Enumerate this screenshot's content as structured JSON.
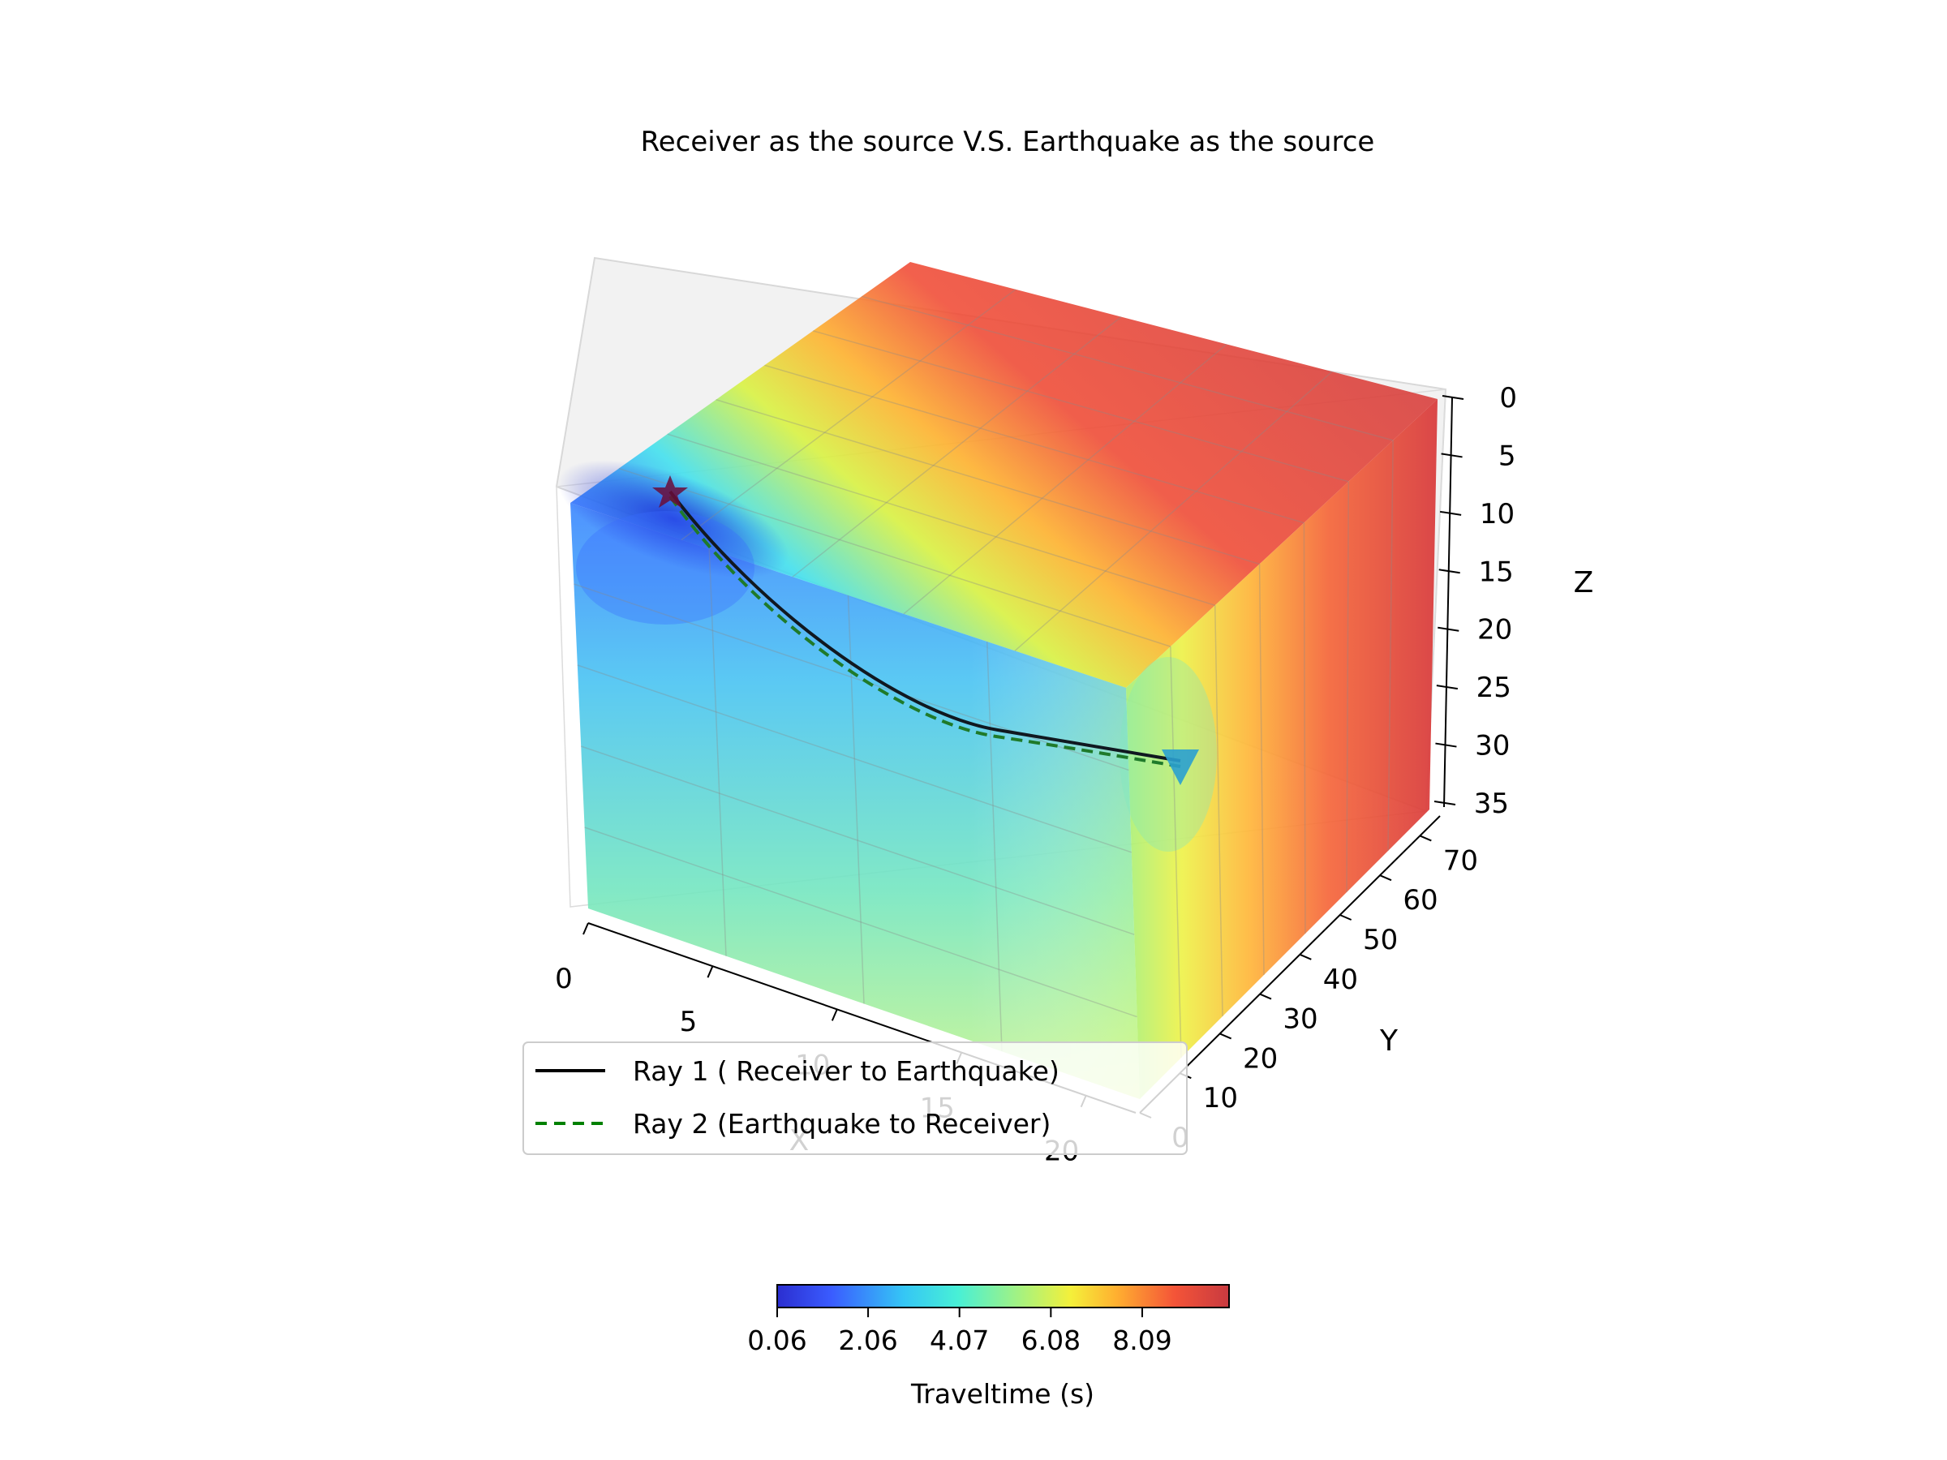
{
  "chart_data": {
    "type": "3d-volume",
    "title": "Receiver as the source V.S. Earthquake as the source",
    "xlabel": "X",
    "ylabel": "Y",
    "zlabel": "Z",
    "xlim": [
      0,
      22
    ],
    "ylim": [
      0,
      75
    ],
    "zlim": [
      35,
      0
    ],
    "x_ticks": [
      "0",
      "5",
      "10",
      "15",
      "20"
    ],
    "y_ticks": [
      "0",
      "10",
      "20",
      "30",
      "40",
      "50",
      "60",
      "70"
    ],
    "z_ticks": [
      "0",
      "5",
      "10",
      "15",
      "20",
      "25",
      "30",
      "35"
    ],
    "colormap": "jet",
    "colorbar": {
      "label": "Traveltime (s)",
      "ticks": [
        "0.06",
        "2.06",
        "4.07",
        "6.08",
        "8.09"
      ],
      "range": [
        0.06,
        10.0
      ]
    },
    "source_marker": {
      "symbol": "star",
      "x": 0,
      "y": 10,
      "z": 2
    },
    "receiver_marker": {
      "symbol": "triangle-down",
      "x": 20,
      "y": 40,
      "z": 0
    },
    "series": [
      {
        "name": "Ray 1 ( Receiver to Earthquake)",
        "color": "#000000",
        "style": "solid"
      },
      {
        "name": "Ray 2 (Earthquake to Receiver)",
        "color": "#008000",
        "style": "dashed"
      }
    ],
    "legend_position": "lower-center"
  }
}
